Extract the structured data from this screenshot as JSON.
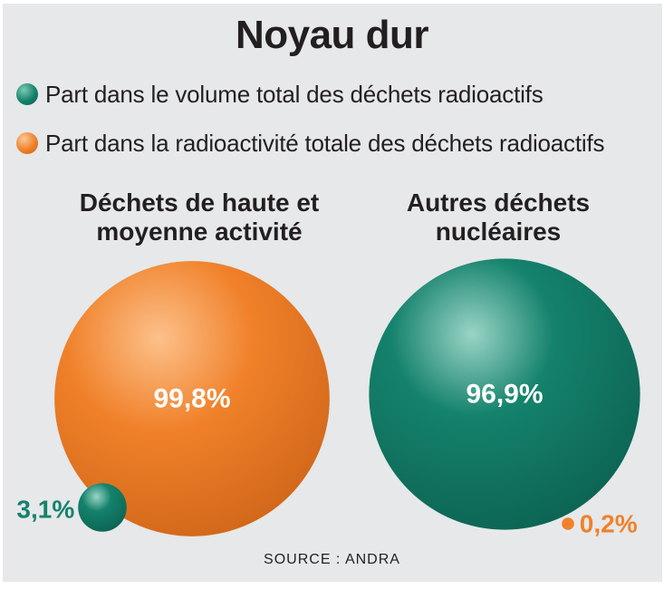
{
  "colors": {
    "volume": "#14826c",
    "radioactivity": "#f0812a",
    "background": "#e6e8e9",
    "text": "#231f20"
  },
  "chart_data": {
    "type": "bubble",
    "title": "Noyau dur",
    "legend": [
      {
        "key": "volume",
        "label": "Part dans le volume total des déchets radioactifs",
        "color": "#14826c"
      },
      {
        "key": "radioactivity",
        "label": "Part dans la radioactivité totale des déchets radioactifs",
        "color": "#f0812a"
      }
    ],
    "groups": [
      {
        "name_lines": [
          "Déchets de haute et",
          "moyenne activité"
        ],
        "radioactivity": 99.8,
        "radioactivity_label": "99,8%",
        "volume": 3.1,
        "volume_label": "3,1%"
      },
      {
        "name_lines": [
          "Autres déchets",
          "nucléaires"
        ],
        "volume": 96.9,
        "volume_label": "96,9%",
        "radioactivity": 0.2,
        "radioactivity_label": "0,2%"
      }
    ],
    "source": "SOURCE : ANDRA"
  }
}
